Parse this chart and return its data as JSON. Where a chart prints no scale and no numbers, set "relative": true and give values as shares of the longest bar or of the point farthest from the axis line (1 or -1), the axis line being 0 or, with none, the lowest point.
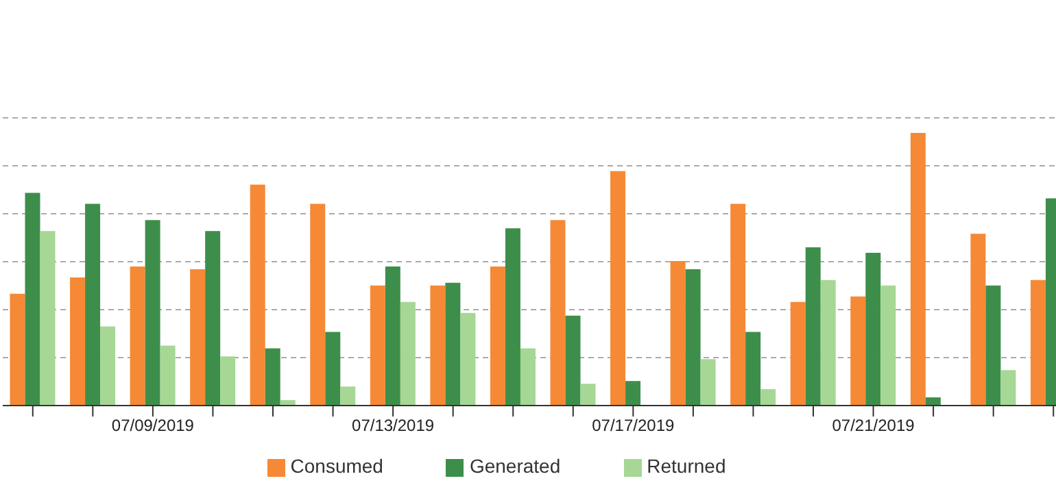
{
  "chart_data": {
    "type": "bar",
    "relative": true,
    "categories": [
      null,
      null,
      "07/09/2019",
      null,
      null,
      null,
      "07/13/2019",
      null,
      null,
      null,
      "07/17/2019",
      null,
      null,
      null,
      "07/21/2019",
      null,
      null,
      null
    ],
    "series": [
      {
        "name": "Consumed",
        "color": "#f68935",
        "values": [
          0.41,
          0.47,
          0.51,
          0.5,
          0.81,
          0.74,
          0.44,
          0.44,
          0.51,
          0.68,
          0.86,
          0.53,
          0.74,
          0.38,
          0.4,
          1,
          0.63,
          0.46
        ]
      },
      {
        "name": "Generated",
        "color": "#3e8e4b",
        "values": [
          0.78,
          0.74,
          0.68,
          0.64,
          0.21,
          0.27,
          0.51,
          0.45,
          0.65,
          0.33,
          0.09,
          0.5,
          0.27,
          0.58,
          0.56,
          0.03,
          0.44,
          0.76
        ]
      },
      {
        "name": "Returned",
        "color": "#a6d795",
        "values": [
          0.64,
          0.29,
          0.22,
          0.18,
          0.02,
          0.07,
          0.38,
          0.34,
          0.21,
          0.08,
          0,
          0.17,
          0.06,
          0.46,
          0.44,
          0,
          0.13,
          null
        ]
      }
    ],
    "grid": "y",
    "legend": "bottom"
  }
}
